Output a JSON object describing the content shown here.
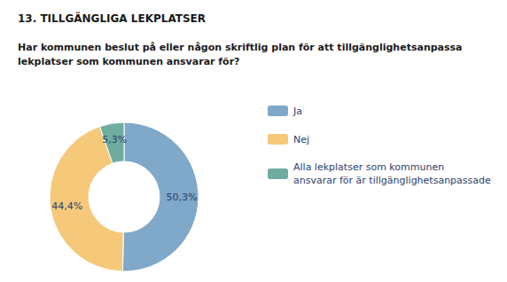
{
  "chart_data": {
    "type": "pie",
    "title": "13. TILLGÄNGLIGA LEKPLATSER",
    "subtitle": "Har kommunen beslut på eller någon skriftlig plan för att tillgänglighetsanpassa\nlekplatser som kommunen ansvarar för?",
    "categories": [
      "Ja",
      "Nej",
      "Alla lekplatser som kommunen\nansvarar för är tillgänglighetsanpassade"
    ],
    "values": [
      50.3,
      44.4,
      5.3
    ],
    "value_labels": [
      "50,3%",
      "44,4%",
      "5,3%"
    ],
    "colors": [
      "#7fa8c9",
      "#f5c87a",
      "#6fada0"
    ],
    "data_labels": true,
    "legend": "right"
  }
}
